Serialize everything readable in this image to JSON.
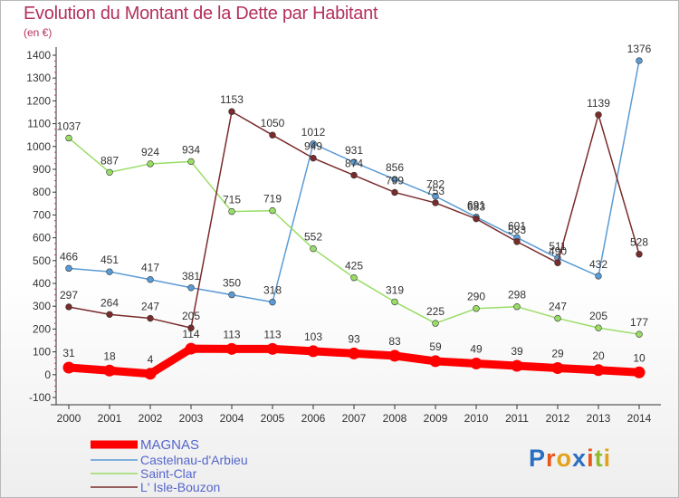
{
  "title": "Evolution du Montant de la Dette par Habitant",
  "subtitle": "(en €)",
  "logo": {
    "text": "Proxiti",
    "colors": [
      "#2a6fc1",
      "#e8541a",
      "#e2a21a",
      "#2a6fc1",
      "#e8541a",
      "#8fbc2a",
      "#e2a21a"
    ]
  },
  "chart_data": {
    "type": "line",
    "title": "Evolution du Montant de la Dette par Habitant",
    "ylabel": "(en €)",
    "x": [
      2000,
      2001,
      2002,
      2003,
      2004,
      2005,
      2006,
      2007,
      2008,
      2009,
      2010,
      2011,
      2012,
      2013,
      2014
    ],
    "ylim": [
      -100,
      1400
    ],
    "yticks": [
      -100,
      0,
      100,
      200,
      300,
      400,
      500,
      600,
      700,
      800,
      900,
      1000,
      1100,
      1200,
      1300,
      1400
    ],
    "grid": false,
    "legend": "bottom-left",
    "series": [
      {
        "name": "MAGNAS",
        "color": "#ff0000",
        "values": [
          31,
          18,
          4,
          114,
          113,
          113,
          103,
          93,
          83,
          59,
          49,
          39,
          29,
          20,
          10
        ]
      },
      {
        "name": "Castelnau-d'Arbieu",
        "color": "#5b9bd5",
        "values": [
          466,
          451,
          417,
          381,
          350,
          318,
          1012,
          931,
          856,
          782,
          691,
          601,
          511,
          432,
          1376
        ]
      },
      {
        "name": "Saint-Clar",
        "color": "#99dd66",
        "values": [
          1037,
          887,
          924,
          934,
          715,
          719,
          552,
          425,
          319,
          225,
          290,
          298,
          247,
          205,
          177
        ]
      },
      {
        "name": "L' Isle-Bouzon",
        "color": "#7a2b2b",
        "values": [
          297,
          264,
          247,
          205,
          1153,
          1050,
          949,
          874,
          799,
          753,
          683,
          583,
          490,
          1139,
          528
        ]
      }
    ]
  }
}
